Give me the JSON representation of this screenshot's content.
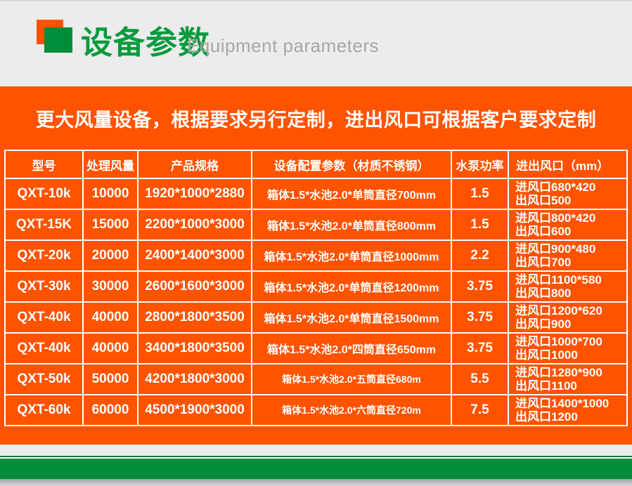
{
  "header": {
    "title_cn": "设备参数",
    "title_en": "Equipment parameters"
  },
  "banner": {
    "text": "更大风量设备，根据要求另行定制，进出风口可根据客户要求定制"
  },
  "table": {
    "columns": [
      "型号",
      "处理风量",
      "产品规格",
      "设备配置参数（材质不锈钢）",
      "水泵功率",
      "进出风口（mm）"
    ],
    "rows": [
      {
        "model": "QXT-10k",
        "airflow": "10000",
        "spec": "1920*1000*2880",
        "config": "箱体1.5*水池2.0*单筒直径700mm",
        "pump": "1.5",
        "inlet": "进风口680*420",
        "outlet": "出风口500"
      },
      {
        "model": "QXT-15K",
        "airflow": "15000",
        "spec": "2200*1000*3000",
        "config": "箱体1.5*水池2.0*单筒直径800mm",
        "pump": "1.5",
        "inlet": "进风口800*420",
        "outlet": "出风口600"
      },
      {
        "model": "QXT-20k",
        "airflow": "20000",
        "spec": "2400*1400*3000",
        "config": "箱体1.5*水池2.0*单筒直径1000mm",
        "pump": "2.2",
        "inlet": "进风口900*480",
        "outlet": "出风口700"
      },
      {
        "model": "QXT-30k",
        "airflow": "30000",
        "spec": "2600*1600*3000",
        "config": "箱体1.5*水池2.0*单筒直径1200mm",
        "pump": "3.75",
        "inlet": "进风口1100*580",
        "outlet": "出风口800"
      },
      {
        "model": "QXT-40k",
        "airflow": "40000",
        "spec": "2800*1800*3500",
        "config": "箱体1.5*水池2.0*单筒直径1500mm",
        "pump": "3.75",
        "inlet": "进风口1200*620",
        "outlet": "出风口900"
      },
      {
        "model": "QXT-40k",
        "airflow": "40000",
        "spec": "3400*1800*3500",
        "config": "箱体1.5*水池2.0*四筒直径650mm",
        "pump": "3.75",
        "inlet": "进风口1000*700",
        "outlet": "出风口1000"
      },
      {
        "model": "QXT-50k",
        "airflow": "50000",
        "spec": "4200*1800*3000",
        "config": "箱体1.5*水池2.0*五筒直径680m",
        "pump": "5.5",
        "inlet": "进风口1280*900",
        "outlet": "出风口1100"
      },
      {
        "model": "QXT-60k",
        "airflow": "60000",
        "spec": "4500*1900*3000",
        "config": "箱体1.5*水池2.0*六筒直径720m",
        "pump": "7.5",
        "inlet": "进风口1400*1000",
        "outlet": "出风口1200"
      }
    ]
  },
  "colors": {
    "accent_orange": "#ff5300",
    "brand_green": "#008c38",
    "title_green": "#0a9b3e",
    "page_gray": "#ececec",
    "subtitle_gray": "#a7a7a7",
    "text_white": "#ffffff"
  }
}
